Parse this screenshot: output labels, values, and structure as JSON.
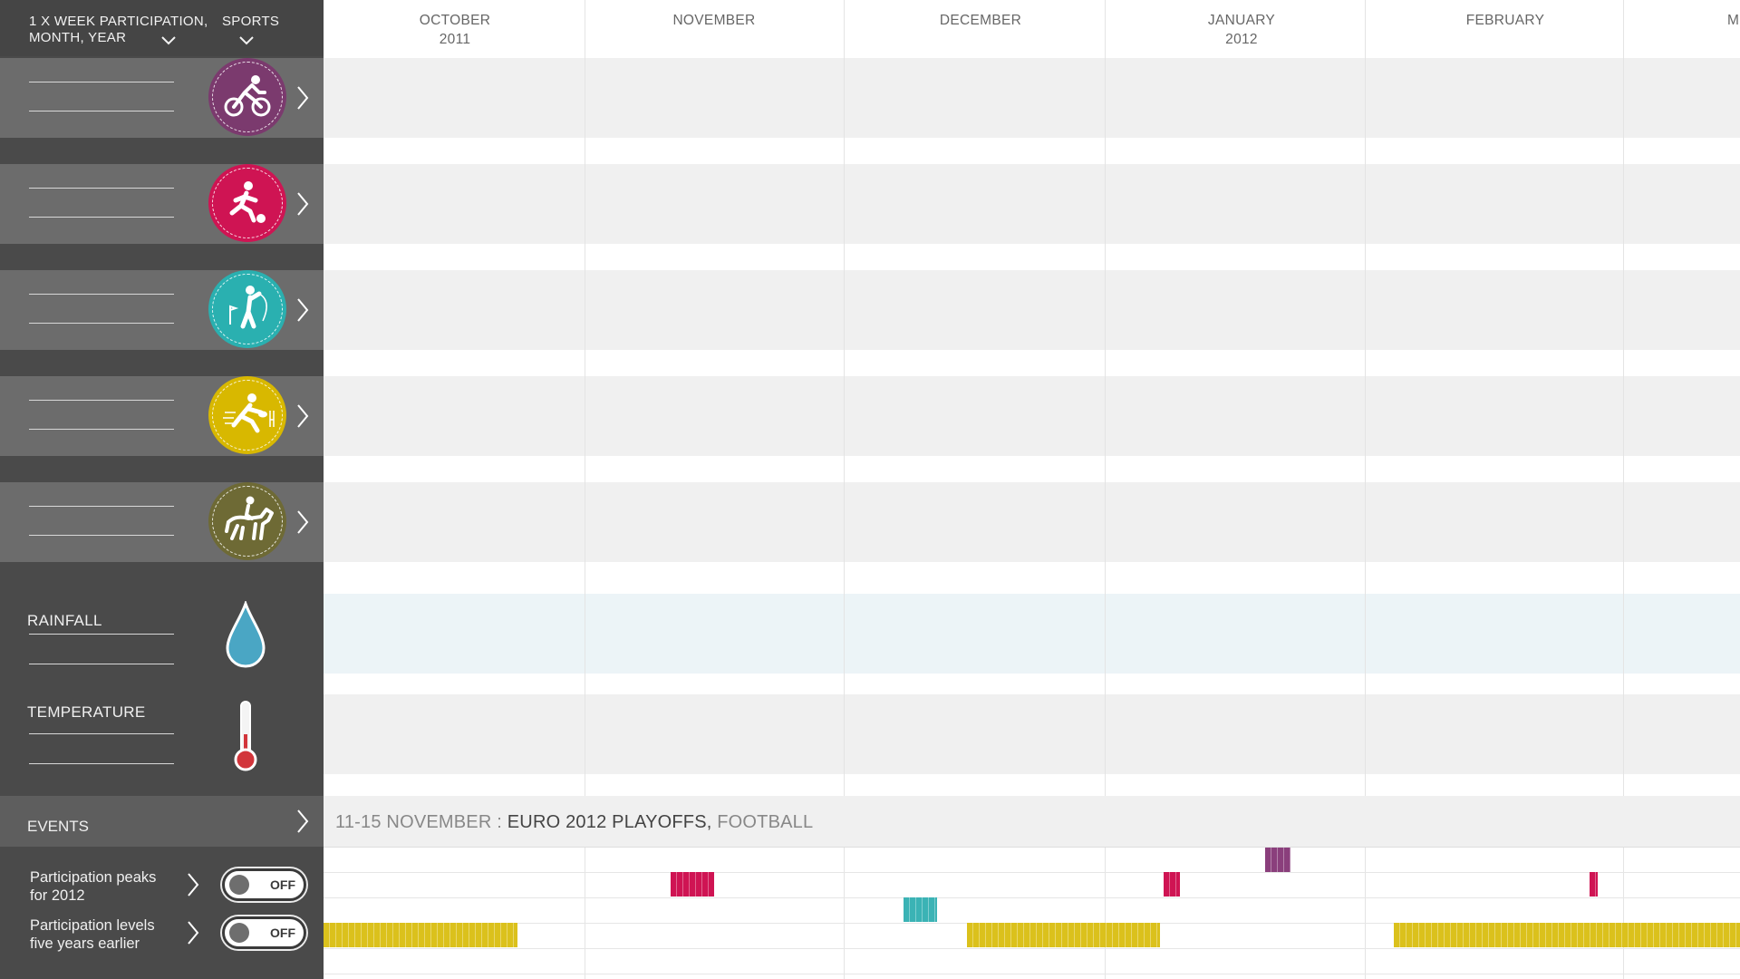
{
  "header": {
    "participation_line1": "1 X WEEK PARTICIPATION,",
    "participation_line2": "MONTH, YEAR",
    "sports_label": "SPORTS"
  },
  "sports": [
    {
      "name": "cycling-icon",
      "color": "#7b3a6e"
    },
    {
      "name": "football-icon",
      "color": "#cf1453"
    },
    {
      "name": "golf-icon",
      "color": "#2ab0b0"
    },
    {
      "name": "rugby-icon",
      "color": "#d8b800"
    },
    {
      "name": "equestrian-icon",
      "color": "#6e6a35"
    }
  ],
  "weather": {
    "rainfall_label": "RAINFALL",
    "temperature_label": "TEMPERATURE"
  },
  "events": {
    "label": "EVENTS",
    "current_date": "11-15 NOVEMBER : ",
    "current_name": "EURO 2012 PLAYOFFS,",
    "current_sport": " FOOTBALL"
  },
  "toggles": [
    {
      "line1": "Participation peaks",
      "line2": "for 2012",
      "state": "OFF"
    },
    {
      "line1": "Participation levels",
      "line2": "five years earlier",
      "state": "OFF"
    }
  ],
  "months": [
    {
      "name": "OCTOBER",
      "year": "2011"
    },
    {
      "name": "NOVEMBER",
      "year": ""
    },
    {
      "name": "DECEMBER",
      "year": ""
    },
    {
      "name": "JANUARY",
      "year": "2012"
    },
    {
      "name": "FEBRUARY",
      "year": ""
    },
    {
      "name": "M",
      "year": ""
    }
  ],
  "colors": {
    "sidebar": "#4a4a4a",
    "band": "#f0f0f0",
    "rain_band": "#ecf4f7",
    "purple": "#8a3f7c",
    "pink": "#cf1453",
    "teal": "#3bb3b5",
    "yellow": "#dbc11c"
  }
}
